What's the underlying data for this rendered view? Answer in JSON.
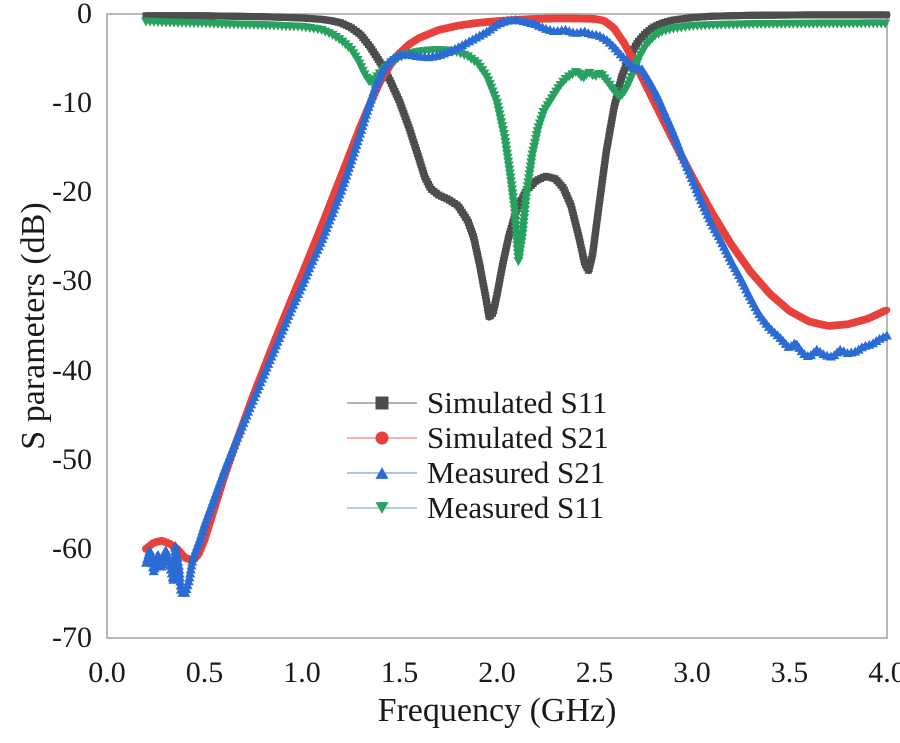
{
  "figure": {
    "background": "#ffffff",
    "border_color": "#a0a0a0"
  },
  "chart_data": {
    "type": "line",
    "title": "",
    "xlabel": "Frequency (GHz)",
    "ylabel": "S parameters (dB)",
    "xlim": [
      0.0,
      4.0
    ],
    "ylim": [
      -70,
      0
    ],
    "grid": false,
    "legend_position": "center",
    "xticks": {
      "values": [
        0.0,
        0.5,
        1.0,
        1.5,
        2.0,
        2.5,
        3.0,
        3.5,
        4.0
      ],
      "labels": [
        "0.0",
        "0.5",
        "1.0",
        "1.5",
        "2.0",
        "2.5",
        "3.0",
        "3.5",
        "4.0"
      ]
    },
    "yticks": {
      "values": [
        0,
        -10,
        -20,
        -30,
        -40,
        -50,
        -60,
        -70
      ],
      "labels": [
        "0",
        "-10",
        "-20",
        "-30",
        "-40",
        "-50",
        "-60",
        "-70"
      ]
    },
    "series": [
      {
        "name": "Simulated S11",
        "color": "#4d4d4d",
        "legend_line_color": "#b3b3b3",
        "marker": "square",
        "line_width": 7,
        "marker_size": 7,
        "marker_step": 3,
        "points": [
          [
            0.2,
            -0.2
          ],
          [
            0.5,
            -0.2
          ],
          [
            0.8,
            -0.3
          ],
          [
            1.0,
            -0.45
          ],
          [
            1.1,
            -0.6
          ],
          [
            1.15,
            -0.75
          ],
          [
            1.2,
            -1.0
          ],
          [
            1.25,
            -1.5
          ],
          [
            1.3,
            -2.3
          ],
          [
            1.35,
            -3.7
          ],
          [
            1.4,
            -5.4
          ],
          [
            1.45,
            -7.4
          ],
          [
            1.5,
            -9.8
          ],
          [
            1.55,
            -12.8
          ],
          [
            1.6,
            -16.2
          ],
          [
            1.63,
            -18.3
          ],
          [
            1.66,
            -19.6
          ],
          [
            1.7,
            -20.3
          ],
          [
            1.75,
            -20.8
          ],
          [
            1.8,
            -21.5
          ],
          [
            1.85,
            -23.2
          ],
          [
            1.88,
            -25.0
          ],
          [
            1.91,
            -28.0
          ],
          [
            1.94,
            -31.5
          ],
          [
            1.96,
            -34.0
          ],
          [
            1.98,
            -33.5
          ],
          [
            2.0,
            -31.5
          ],
          [
            2.03,
            -28.0
          ],
          [
            2.06,
            -25.0
          ],
          [
            2.1,
            -22.0
          ],
          [
            2.15,
            -19.8
          ],
          [
            2.2,
            -18.7
          ],
          [
            2.25,
            -18.2
          ],
          [
            2.3,
            -18.5
          ],
          [
            2.34,
            -19.5
          ],
          [
            2.38,
            -21.5
          ],
          [
            2.42,
            -25.0
          ],
          [
            2.45,
            -28.0
          ],
          [
            2.47,
            -28.8
          ],
          [
            2.49,
            -27.0
          ],
          [
            2.52,
            -22.0
          ],
          [
            2.56,
            -15.5
          ],
          [
            2.6,
            -10.5
          ],
          [
            2.64,
            -7.0
          ],
          [
            2.68,
            -4.8
          ],
          [
            2.72,
            -3.2
          ],
          [
            2.76,
            -2.2
          ],
          [
            2.8,
            -1.5
          ],
          [
            2.85,
            -1.0
          ],
          [
            2.9,
            -0.7
          ],
          [
            3.0,
            -0.4
          ],
          [
            3.1,
            -0.25
          ],
          [
            3.3,
            -0.15
          ],
          [
            3.6,
            -0.1
          ],
          [
            4.0,
            -0.1
          ]
        ]
      },
      {
        "name": "Simulated S21",
        "color": "#e8403a",
        "legend_line_color": "#f3b2ae",
        "marker": "circle",
        "line_width": 6.5,
        "marker_size": 8,
        "marker_step": 3,
        "points": [
          [
            0.2,
            -60.0
          ],
          [
            0.24,
            -59.3
          ],
          [
            0.28,
            -59.1
          ],
          [
            0.32,
            -59.4
          ],
          [
            0.36,
            -60.0
          ],
          [
            0.4,
            -61.0
          ],
          [
            0.44,
            -61.3
          ],
          [
            0.47,
            -60.6
          ],
          [
            0.5,
            -59.0
          ],
          [
            0.55,
            -55.5
          ],
          [
            0.6,
            -52.0
          ],
          [
            0.65,
            -48.8
          ],
          [
            0.7,
            -45.8
          ],
          [
            0.75,
            -42.8
          ],
          [
            0.8,
            -40.0
          ],
          [
            0.85,
            -37.2
          ],
          [
            0.9,
            -34.5
          ],
          [
            0.95,
            -31.8
          ],
          [
            1.0,
            -29.2
          ],
          [
            1.05,
            -26.5
          ],
          [
            1.1,
            -23.8
          ],
          [
            1.15,
            -21.0
          ],
          [
            1.2,
            -18.2
          ],
          [
            1.25,
            -15.4
          ],
          [
            1.3,
            -12.6
          ],
          [
            1.35,
            -10.0
          ],
          [
            1.4,
            -7.6
          ],
          [
            1.45,
            -5.8
          ],
          [
            1.5,
            -4.4
          ],
          [
            1.55,
            -3.4
          ],
          [
            1.6,
            -2.7
          ],
          [
            1.7,
            -1.8
          ],
          [
            1.8,
            -1.3
          ],
          [
            1.9,
            -1.0
          ],
          [
            2.0,
            -0.8
          ],
          [
            2.1,
            -0.65
          ],
          [
            2.2,
            -0.55
          ],
          [
            2.3,
            -0.5
          ],
          [
            2.4,
            -0.5
          ],
          [
            2.5,
            -0.55
          ],
          [
            2.55,
            -0.75
          ],
          [
            2.6,
            -1.6
          ],
          [
            2.65,
            -3.2
          ],
          [
            2.7,
            -5.2
          ],
          [
            2.75,
            -7.4
          ],
          [
            2.8,
            -9.6
          ],
          [
            2.9,
            -14.0
          ],
          [
            3.0,
            -18.2
          ],
          [
            3.1,
            -22.2
          ],
          [
            3.2,
            -25.8
          ],
          [
            3.3,
            -28.9
          ],
          [
            3.4,
            -31.4
          ],
          [
            3.5,
            -33.3
          ],
          [
            3.6,
            -34.5
          ],
          [
            3.7,
            -35.0
          ],
          [
            3.8,
            -34.8
          ],
          [
            3.9,
            -34.2
          ],
          [
            4.0,
            -33.2
          ]
        ]
      },
      {
        "name": "Measured S11",
        "color": "#28a060",
        "legend_line_color": "#a9d9be",
        "marker": "triangle-down",
        "line_width": 2.5,
        "marker_size": 10,
        "marker_step": 4,
        "points": [
          [
            0.2,
            -0.9
          ],
          [
            0.3,
            -1.0
          ],
          [
            0.4,
            -1.05
          ],
          [
            0.5,
            -1.1
          ],
          [
            0.6,
            -1.2
          ],
          [
            0.7,
            -1.25
          ],
          [
            0.8,
            -1.3
          ],
          [
            0.9,
            -1.4
          ],
          [
            1.0,
            -1.5
          ],
          [
            1.05,
            -1.65
          ],
          [
            1.1,
            -1.85
          ],
          [
            1.15,
            -2.3
          ],
          [
            1.2,
            -3.0
          ],
          [
            1.25,
            -4.0
          ],
          [
            1.29,
            -5.4
          ],
          [
            1.32,
            -6.8
          ],
          [
            1.35,
            -7.8
          ],
          [
            1.38,
            -7.2
          ],
          [
            1.42,
            -6.2
          ],
          [
            1.46,
            -5.4
          ],
          [
            1.5,
            -4.9
          ],
          [
            1.55,
            -4.5
          ],
          [
            1.6,
            -4.3
          ],
          [
            1.65,
            -4.15
          ],
          [
            1.7,
            -4.1
          ],
          [
            1.75,
            -4.15
          ],
          [
            1.8,
            -4.35
          ],
          [
            1.85,
            -4.8
          ],
          [
            1.9,
            -5.6
          ],
          [
            1.95,
            -7.2
          ],
          [
            2.0,
            -10.0
          ],
          [
            2.04,
            -14.0
          ],
          [
            2.07,
            -18.5
          ],
          [
            2.09,
            -22.0
          ],
          [
            2.1,
            -25.0
          ],
          [
            2.11,
            -27.8
          ],
          [
            2.13,
            -25.0
          ],
          [
            2.15,
            -20.5
          ],
          [
            2.18,
            -16.0
          ],
          [
            2.21,
            -13.0
          ],
          [
            2.24,
            -11.0
          ],
          [
            2.28,
            -9.6
          ],
          [
            2.32,
            -8.2
          ],
          [
            2.35,
            -7.4
          ],
          [
            2.38,
            -6.9
          ],
          [
            2.41,
            -6.5
          ],
          [
            2.44,
            -7.3
          ],
          [
            2.47,
            -6.6
          ],
          [
            2.5,
            -7.1
          ],
          [
            2.53,
            -6.7
          ],
          [
            2.56,
            -7.5
          ],
          [
            2.6,
            -8.7
          ],
          [
            2.63,
            -9.4
          ],
          [
            2.66,
            -8.6
          ],
          [
            2.7,
            -6.6
          ],
          [
            2.73,
            -4.9
          ],
          [
            2.77,
            -3.4
          ],
          [
            2.81,
            -2.5
          ],
          [
            2.85,
            -2.0
          ],
          [
            2.9,
            -1.7
          ],
          [
            3.0,
            -1.4
          ],
          [
            3.1,
            -1.3
          ],
          [
            3.3,
            -1.2
          ],
          [
            3.6,
            -1.15
          ],
          [
            4.0,
            -1.1
          ]
        ]
      },
      {
        "name": "Measured S21",
        "color": "#2a6bd4",
        "legend_line_color": "#a9c4ec",
        "marker": "triangle-up",
        "line_width": 3,
        "marker_size": 10,
        "marker_step": 4,
        "points": [
          [
            0.2,
            -61.5
          ],
          [
            0.22,
            -60.0
          ],
          [
            0.24,
            -62.5
          ],
          [
            0.26,
            -60.5
          ],
          [
            0.28,
            -62.0
          ],
          [
            0.3,
            -60.0
          ],
          [
            0.32,
            -61.5
          ],
          [
            0.34,
            -63.5
          ],
          [
            0.35,
            -59.5
          ],
          [
            0.37,
            -62.0
          ],
          [
            0.38,
            -64.8
          ],
          [
            0.4,
            -65.0
          ],
          [
            0.42,
            -63.5
          ],
          [
            0.44,
            -61.0
          ],
          [
            0.46,
            -59.8
          ],
          [
            0.48,
            -58.6
          ],
          [
            0.5,
            -57.2
          ],
          [
            0.55,
            -54.2
          ],
          [
            0.6,
            -51.2
          ],
          [
            0.65,
            -48.4
          ],
          [
            0.7,
            -45.8
          ],
          [
            0.75,
            -43.2
          ],
          [
            0.8,
            -40.6
          ],
          [
            0.85,
            -38.0
          ],
          [
            0.9,
            -35.4
          ],
          [
            0.95,
            -32.8
          ],
          [
            1.0,
            -30.4
          ],
          [
            1.05,
            -27.8
          ],
          [
            1.1,
            -25.4
          ],
          [
            1.15,
            -22.6
          ],
          [
            1.2,
            -19.8
          ],
          [
            1.25,
            -16.6
          ],
          [
            1.3,
            -13.2
          ],
          [
            1.34,
            -10.4
          ],
          [
            1.38,
            -7.8
          ],
          [
            1.42,
            -6.0
          ],
          [
            1.46,
            -5.0
          ],
          [
            1.5,
            -4.5
          ],
          [
            1.55,
            -4.5
          ],
          [
            1.6,
            -4.7
          ],
          [
            1.65,
            -4.8
          ],
          [
            1.7,
            -4.6
          ],
          [
            1.75,
            -4.2
          ],
          [
            1.8,
            -3.7
          ],
          [
            1.85,
            -3.1
          ],
          [
            1.9,
            -2.5
          ],
          [
            1.95,
            -1.9
          ],
          [
            2.0,
            -1.1
          ],
          [
            2.05,
            -0.7
          ],
          [
            2.1,
            -0.6
          ],
          [
            2.15,
            -0.8
          ],
          [
            2.2,
            -1.1
          ],
          [
            2.25,
            -1.6
          ],
          [
            2.3,
            -1.9
          ],
          [
            2.35,
            -1.7
          ],
          [
            2.4,
            -2.1
          ],
          [
            2.45,
            -1.9
          ],
          [
            2.48,
            -2.2
          ],
          [
            2.52,
            -2.3
          ],
          [
            2.56,
            -2.8
          ],
          [
            2.6,
            -3.6
          ],
          [
            2.64,
            -4.6
          ],
          [
            2.68,
            -5.5
          ],
          [
            2.71,
            -6.1
          ],
          [
            2.74,
            -6.0
          ],
          [
            2.78,
            -7.4
          ],
          [
            2.82,
            -9.0
          ],
          [
            2.86,
            -11.0
          ],
          [
            2.9,
            -13.0
          ],
          [
            2.95,
            -15.8
          ],
          [
            3.0,
            -18.4
          ],
          [
            3.05,
            -21.0
          ],
          [
            3.1,
            -23.4
          ],
          [
            3.15,
            -25.4
          ],
          [
            3.2,
            -27.6
          ],
          [
            3.25,
            -29.6
          ],
          [
            3.3,
            -31.8
          ],
          [
            3.35,
            -33.8
          ],
          [
            3.4,
            -35.2
          ],
          [
            3.45,
            -36.2
          ],
          [
            3.5,
            -37.4
          ],
          [
            3.53,
            -36.8
          ],
          [
            3.57,
            -38.0
          ],
          [
            3.6,
            -38.4
          ],
          [
            3.64,
            -37.6
          ],
          [
            3.68,
            -38.2
          ],
          [
            3.72,
            -38.4
          ],
          [
            3.76,
            -37.6
          ],
          [
            3.8,
            -38.0
          ],
          [
            3.84,
            -37.8
          ],
          [
            3.88,
            -37.2
          ],
          [
            3.92,
            -37.0
          ],
          [
            3.96,
            -36.4
          ],
          [
            4.0,
            -36.0
          ]
        ]
      }
    ],
    "legend_order": [
      "Simulated S11",
      "Simulated S21",
      "Measured S21",
      "Measured S11"
    ]
  }
}
